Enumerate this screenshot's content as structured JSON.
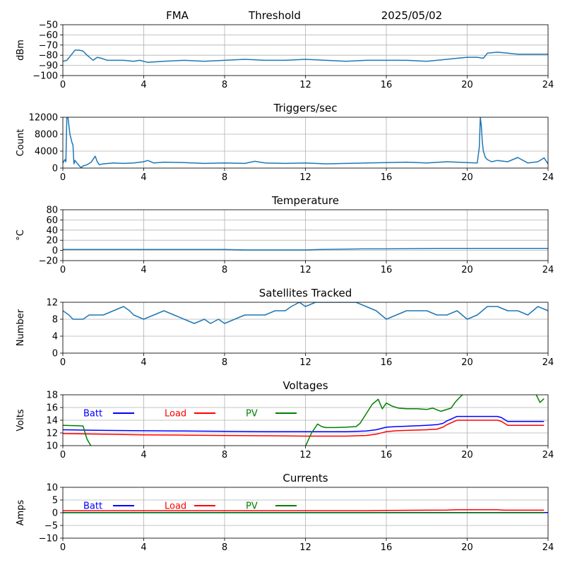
{
  "header": {
    "station": "FMA",
    "mode": "Threshold",
    "date": "2025/05/02"
  },
  "chart_data": [
    {
      "type": "line",
      "title": "",
      "ylabel": "dBm",
      "xlim": [
        0,
        24
      ],
      "ylim": [
        -100,
        -50
      ],
      "xticks": [
        0,
        4,
        8,
        12,
        16,
        20,
        24
      ],
      "yticks": [
        -100,
        -90,
        -80,
        -70,
        -60,
        -50
      ],
      "grid": true,
      "series": [
        {
          "color": "#1f77b4",
          "x": [
            0,
            0.2,
            0.4,
            0.6,
            0.8,
            1.0,
            1.2,
            1.5,
            1.7,
            1.9,
            2.2,
            3,
            3.5,
            3.8,
            4.2,
            5,
            6,
            7,
            8,
            9,
            10,
            11,
            12,
            13,
            14,
            15,
            16,
            17,
            18,
            18.5,
            19,
            19.5,
            20,
            20.5,
            20.8,
            21,
            21.5,
            22,
            22.5,
            23,
            23.5,
            24
          ],
          "y": [
            -86,
            -85,
            -80,
            -75,
            -75,
            -76,
            -80,
            -85,
            -82,
            -83,
            -85,
            -85,
            -86,
            -85,
            -87,
            -86,
            -85,
            -86,
            -85,
            -84,
            -85,
            -85,
            -84,
            -85,
            -86,
            -85,
            -85,
            -85,
            -86,
            -85,
            -84,
            -83,
            -82,
            -82,
            -83,
            -78,
            -77,
            -78,
            -79,
            -79,
            -79,
            -79
          ]
        }
      ]
    },
    {
      "type": "line",
      "title": "Triggers/sec",
      "ylabel": "Count",
      "xlim": [
        0,
        24
      ],
      "ylim": [
        0,
        12000
      ],
      "xticks": [
        0,
        4,
        8,
        12,
        16,
        20,
        24
      ],
      "yticks": [
        0,
        4000,
        8000,
        12000
      ],
      "grid": true,
      "series": [
        {
          "color": "#1f77b4",
          "x": [
            0,
            0.1,
            0.15,
            0.2,
            0.25,
            0.3,
            0.35,
            0.4,
            0.45,
            0.5,
            0.55,
            0.6,
            0.7,
            0.8,
            0.9,
            1.0,
            1.2,
            1.4,
            1.6,
            1.7,
            1.8,
            2,
            2.5,
            3,
            3.5,
            4,
            4.2,
            4.5,
            5,
            6,
            7,
            8,
            9,
            9.5,
            10,
            11,
            12,
            13,
            14,
            15,
            16,
            17,
            18,
            19,
            20,
            20.5,
            20.6,
            20.65,
            20.7,
            20.75,
            20.8,
            20.9,
            21.0,
            21.2,
            21.5,
            22,
            22.5,
            23,
            23.5,
            23.8,
            24
          ],
          "y": [
            1200,
            2000,
            1500,
            12500,
            12000,
            10000,
            8000,
            7000,
            6000,
            5500,
            1000,
            1800,
            1200,
            600,
            100,
            500,
            800,
            1400,
            2800,
            1500,
            800,
            1000,
            1200,
            1100,
            1200,
            1500,
            1800,
            1200,
            1400,
            1300,
            1100,
            1200,
            1100,
            1600,
            1200,
            1100,
            1200,
            1000,
            1100,
            1200,
            1300,
            1400,
            1200,
            1500,
            1300,
            1200,
            5000,
            12000,
            10000,
            6000,
            4000,
            2500,
            2000,
            1500,
            1800,
            1500,
            2500,
            1200,
            1500,
            2400,
            1000
          ]
        }
      ]
    },
    {
      "type": "line",
      "title": "Temperature",
      "ylabel": "°C",
      "xlim": [
        0,
        24
      ],
      "ylim": [
        -20,
        80
      ],
      "xticks": [
        0,
        4,
        8,
        12,
        16,
        20,
        24
      ],
      "yticks": [
        -20,
        0,
        20,
        40,
        60,
        80
      ],
      "grid": true,
      "series": [
        {
          "color": "#1f77b4",
          "x": [
            0,
            4,
            8,
            9,
            12,
            12.7,
            14.8,
            16,
            18.5,
            20,
            24
          ],
          "y": [
            2,
            2,
            2,
            1,
            1,
            2,
            3,
            3,
            4,
            4,
            4
          ]
        }
      ]
    },
    {
      "type": "line",
      "title": "Satellites Tracked",
      "ylabel": "Number",
      "xlim": [
        0,
        24
      ],
      "ylim": [
        0,
        12
      ],
      "xticks": [
        0,
        4,
        8,
        12,
        16,
        20,
        24
      ],
      "yticks": [
        0,
        4,
        8,
        12
      ],
      "grid": true,
      "series": [
        {
          "color": "#1f77b4",
          "x": [
            0,
            0.3,
            0.5,
            1,
            1.3,
            1.8,
            2,
            2.5,
            3,
            3.3,
            3.5,
            4,
            4.5,
            5,
            5.5,
            6,
            6.5,
            7,
            7.3,
            7.7,
            8,
            8.5,
            9,
            9.5,
            10,
            10.5,
            11,
            11.3,
            11.7,
            12,
            12.5,
            13,
            13.5,
            14,
            14.5,
            15,
            15.5,
            16,
            16.5,
            17,
            17.5,
            18,
            18.5,
            19,
            19.5,
            20,
            20.5,
            21,
            21.5,
            22,
            22.5,
            23,
            23.5,
            24
          ],
          "y": [
            10,
            9,
            8,
            8,
            9,
            9,
            9,
            10,
            11,
            10,
            9,
            8,
            9,
            10,
            9,
            8,
            7,
            8,
            7,
            8,
            7,
            8,
            9,
            9,
            9,
            10,
            10,
            11,
            12,
            11,
            12,
            12,
            12,
            12,
            12,
            11,
            10,
            8,
            9,
            10,
            10,
            10,
            9,
            9,
            10,
            8,
            9,
            11,
            11,
            10,
            10,
            9,
            11,
            10
          ]
        }
      ]
    },
    {
      "type": "line",
      "title": "Voltages",
      "ylabel": "Volts",
      "xlim": [
        0,
        24
      ],
      "ylim": [
        10,
        18
      ],
      "xticks": [
        0,
        4,
        8,
        12,
        16,
        20,
        24
      ],
      "yticks": [
        10,
        12,
        14,
        16,
        18
      ],
      "grid": true,
      "legend": "top-left",
      "series": [
        {
          "name": "Batt",
          "color": "#0000ff",
          "x": [
            0,
            2,
            4,
            6,
            8,
            10,
            12,
            14,
            15,
            15.5,
            16,
            16.5,
            17,
            18,
            18.5,
            18.8,
            19,
            19.5,
            20,
            21,
            21.5,
            21.7,
            22,
            23,
            23.8
          ],
          "y": [
            12.5,
            12.4,
            12.35,
            12.3,
            12.25,
            12.2,
            12.2,
            12.2,
            12.3,
            12.5,
            12.9,
            13.0,
            13.05,
            13.2,
            13.3,
            13.5,
            13.9,
            14.6,
            14.6,
            14.6,
            14.6,
            14.4,
            13.8,
            13.8,
            13.8
          ]
        },
        {
          "name": "Load",
          "color": "#ff0000",
          "x": [
            0,
            2,
            4,
            6,
            8,
            10,
            12,
            14,
            15,
            15.5,
            16,
            16.5,
            17,
            18,
            18.5,
            18.8,
            19,
            19.5,
            20,
            21,
            21.5,
            21.7,
            22,
            23,
            23.8
          ],
          "y": [
            11.9,
            11.8,
            11.7,
            11.65,
            11.6,
            11.55,
            11.5,
            11.5,
            11.6,
            11.8,
            12.2,
            12.35,
            12.4,
            12.5,
            12.6,
            12.9,
            13.3,
            14.0,
            14.0,
            14.0,
            14.0,
            13.8,
            13.2,
            13.2,
            13.2
          ]
        },
        {
          "name": "PV",
          "color": "#008000",
          "x": [
            0,
            0.5,
            1.0,
            1.1,
            1.2,
            1.4,
            12.0,
            12.3,
            12.6,
            12.8,
            13.0,
            13.5,
            14.0,
            14.5,
            14.7,
            15.0,
            15.3,
            15.6,
            15.8,
            16.0,
            16.3,
            16.6,
            17.0,
            17.5,
            18.0,
            18.3,
            18.7,
            18.9,
            19.2,
            19.4,
            19.6,
            19.8,
            23.4,
            23.6,
            23.8
          ],
          "y": [
            13.2,
            13.15,
            13.1,
            12.0,
            11.0,
            9.9,
            9.9,
            12.0,
            13.4,
            13.0,
            12.85,
            12.85,
            12.9,
            13.0,
            13.5,
            15.0,
            16.5,
            17.3,
            15.8,
            16.7,
            16.2,
            15.9,
            15.8,
            15.8,
            15.7,
            15.9,
            15.4,
            15.6,
            15.9,
            16.8,
            17.5,
            18.1,
            18.1,
            16.8,
            17.4
          ]
        }
      ]
    },
    {
      "type": "line",
      "title": "Currents",
      "ylabel": "Amps",
      "xlim": [
        0,
        24
      ],
      "ylim": [
        -10,
        10
      ],
      "xticks": [
        0,
        4,
        8,
        12,
        16,
        20,
        24
      ],
      "yticks": [
        -10,
        -5,
        0,
        5,
        10
      ],
      "grid": true,
      "legend": "top-left",
      "series": [
        {
          "name": "Batt",
          "color": "#0000ff",
          "x": [
            0,
            24
          ],
          "y": [
            0.05,
            0.05
          ]
        },
        {
          "name": "Load",
          "color": "#ff0000",
          "x": [
            0,
            8,
            12,
            15,
            16,
            18,
            19,
            19.5,
            20,
            21.5,
            21.8,
            23.8
          ],
          "y": [
            0.8,
            0.8,
            0.8,
            0.8,
            0.9,
            1.0,
            1.05,
            1.2,
            1.2,
            1.2,
            1.0,
            1.0
          ]
        },
        {
          "name": "PV",
          "color": "#008000",
          "x": [
            0,
            23.8
          ],
          "y": [
            0.0,
            0.0
          ]
        }
      ]
    }
  ]
}
